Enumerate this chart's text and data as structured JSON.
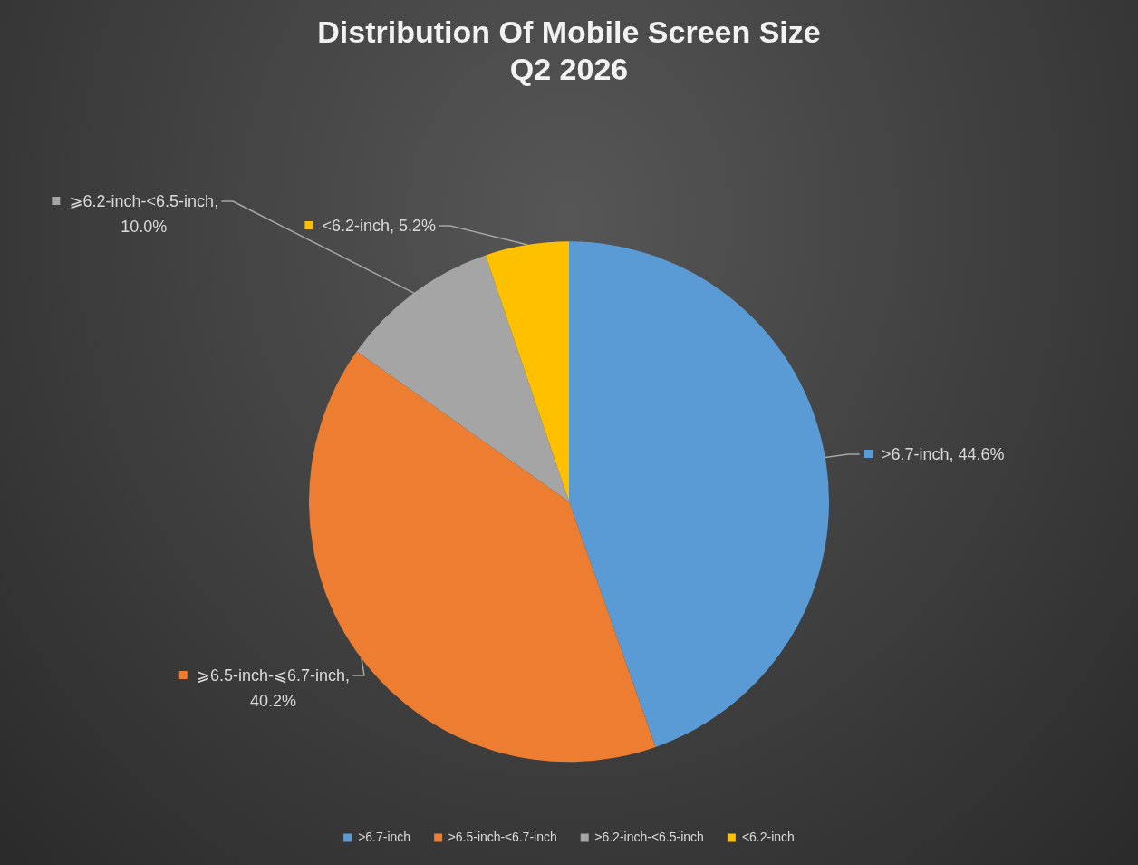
{
  "chart_data": {
    "type": "pie",
    "title": "Distribution Of Mobile Screen Size\nQ2 2026",
    "categories": [
      ">6.7-inch",
      "≥6.5-inch-≤6.7-inch",
      "≥6.2-inch-<6.5-inch",
      "<6.2-inch"
    ],
    "values": [
      44.6,
      40.2,
      10.0,
      5.2
    ],
    "colors": [
      "#5b9bd5",
      "#ed7d31",
      "#a5a5a5",
      "#ffc000"
    ],
    "value_labels": [
      ">6.7-inch, 44.6%",
      "⩾6.5-inch-⩽6.7-inch, 40.2%",
      "⩾6.2-inch-<6.5-inch, 10.0%",
      "<6.2-inch, 5.2%"
    ],
    "legend": "bottom"
  }
}
